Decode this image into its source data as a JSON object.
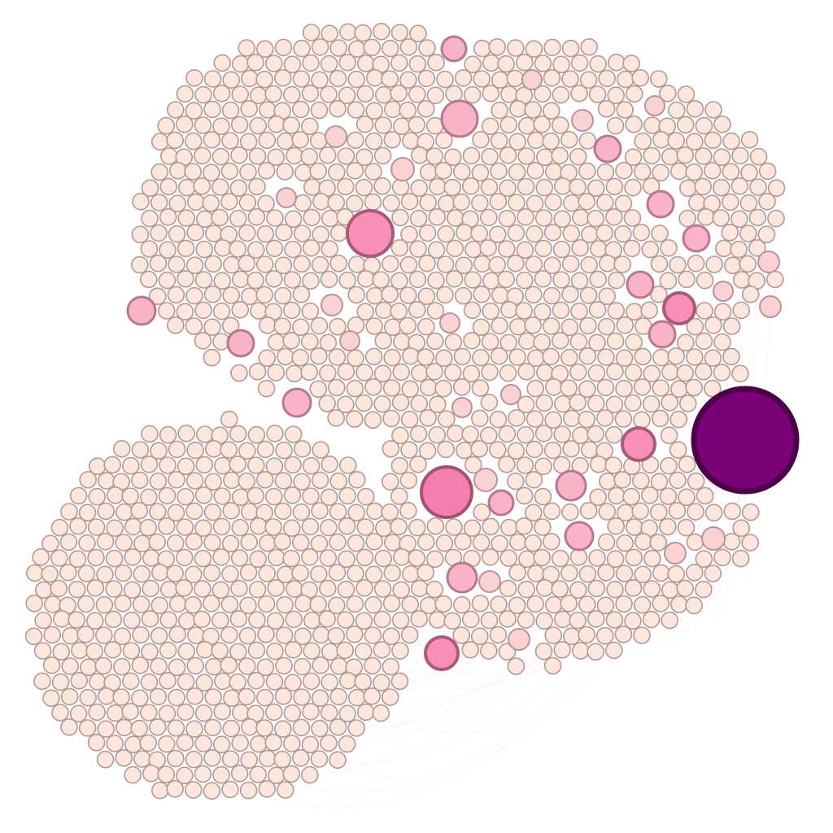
{
  "graph": {
    "type": "network",
    "layout": "packed-circles",
    "labels": "none",
    "colors": {
      "background": "#ffffff",
      "node_base_fill": "#fde6db",
      "node_base_stroke": "#b09a97",
      "node_tier1_fill": "#fbd2d3",
      "node_tier2_fill": "#f9b3c6",
      "node_tier3_fill": "#f78fb6",
      "node_tier4_fill": "#f57daf",
      "hub_fill": "#7a0177",
      "hub_stroke": "#4a0147",
      "edge_color": "#c08acb"
    },
    "clusters": [
      {
        "id": "upper-cluster",
        "base_nodes": 780
      },
      {
        "id": "lower-left-cluster",
        "base_nodes": 470
      }
    ],
    "highlighted_node_tiers": [
      {
        "tier": "hub",
        "count": 1
      },
      {
        "tier": 4,
        "count": 2
      },
      {
        "tier": 3,
        "count": 6
      },
      {
        "tier": 2,
        "count": 14
      },
      {
        "tier": 1,
        "count": 16
      }
    ]
  }
}
